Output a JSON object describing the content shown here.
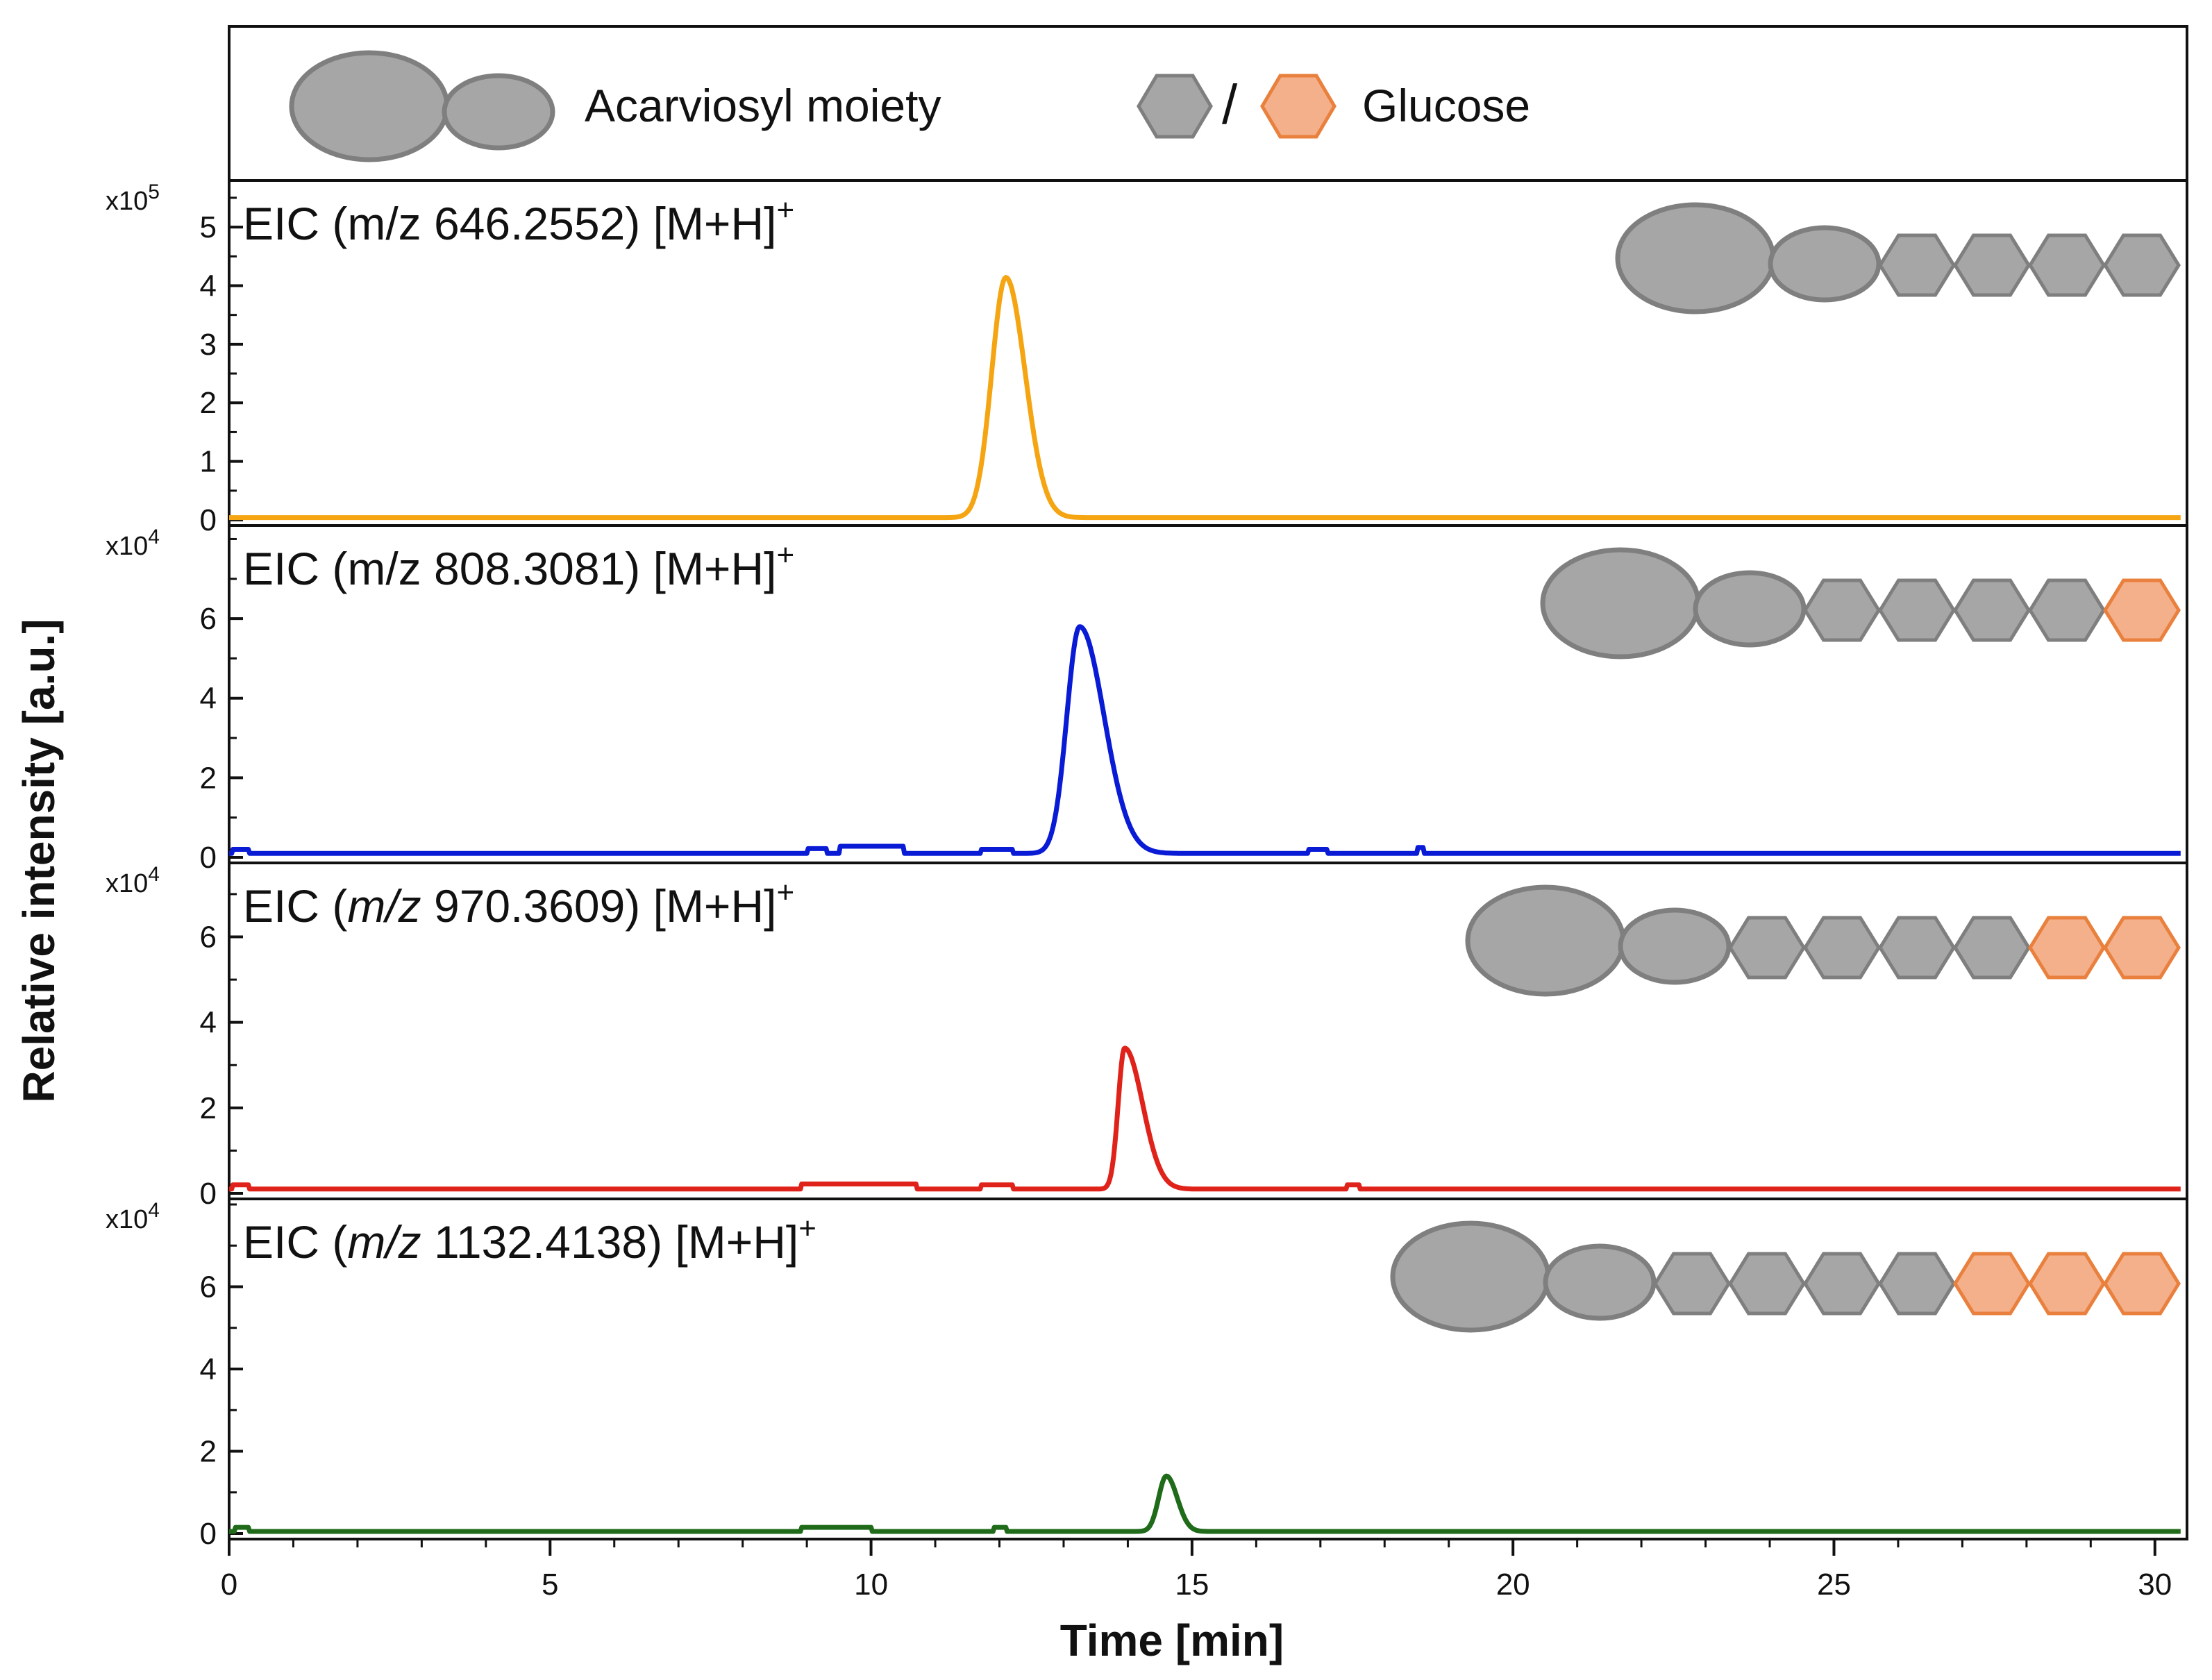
{
  "colors": {
    "grey_fill": "#a6a6a6",
    "grey_stroke": "#7f7f7f",
    "orange_fill": "#f3b08b",
    "orange_stroke": "#e9803d",
    "trace_1": "#f5a412",
    "trace_2": "#0a1bd6",
    "trace_3": "#e0231a",
    "trace_4": "#1f6b1a"
  },
  "legend": {
    "acarviosyl_label": "Acarviosyl moiety",
    "separator": "/",
    "glucose_label": "Glucose"
  },
  "axes": {
    "ylabel": "Relative intensity [a.u.]",
    "xlabel": "Time [min]"
  },
  "chart_data": {
    "type": "line",
    "x_axis": {
      "label": "Time [min]",
      "range": [
        0,
        30.5
      ],
      "major_ticks": [
        0,
        5,
        10,
        15,
        20,
        25,
        30
      ],
      "tick_labels": [
        "0",
        "5",
        "10",
        "15",
        "20",
        "25",
        "30"
      ],
      "minor_step": 1
    },
    "shared_ylabel": "Relative intensity [a.u.]",
    "panels": [
      {
        "title_prefix": "EIC (",
        "mz_prefix": "m/z",
        "mz_italic": false,
        "title_suffix": " 646.2552) [M+H]",
        "superscript": "+",
        "multiplier_base": "x10",
        "multiplier_exp": "5",
        "ylim": [
          0,
          5.7
        ],
        "yticks": [
          0,
          1,
          2,
          3,
          4,
          5
        ],
        "ytick_labels": [
          "0",
          "1",
          "2",
          "3",
          "4",
          "5"
        ],
        "y_minor_step": 0.5,
        "color_key": "trace_1",
        "baseline_y": 0.04,
        "structure": [
          "grey",
          "grey"
        ],
        "peaks": [
          {
            "center": 12.1,
            "height": 4.1,
            "sigma_left": 0.22,
            "sigma_right": 0.3
          }
        ],
        "plateaus": []
      },
      {
        "title_prefix": "EIC (",
        "mz_prefix": "m/z",
        "mz_italic": false,
        "title_suffix": " 808.3081) [M+H]",
        "superscript": "+",
        "multiplier_base": "x10",
        "multiplier_exp": "4",
        "ylim": [
          0,
          8.2
        ],
        "yticks": [
          0,
          2,
          4,
          6
        ],
        "ytick_labels": [
          "0",
          "2",
          "4",
          "6"
        ],
        "y_minor_step": 1,
        "color_key": "trace_2",
        "baseline_y": 0.1,
        "structure": [
          "grey",
          "grey",
          "orange"
        ],
        "peaks": [
          {
            "center": 13.25,
            "height": 5.7,
            "sigma_left": 0.2,
            "sigma_right": 0.38
          }
        ],
        "plateaus": [
          {
            "start": 0.05,
            "end": 0.3,
            "value": 0.2
          },
          {
            "start": 9.0,
            "end": 9.3,
            "value": 0.22
          },
          {
            "start": 9.5,
            "end": 10.5,
            "value": 0.28
          },
          {
            "start": 11.7,
            "end": 12.2,
            "value": 0.2
          },
          {
            "start": 16.8,
            "end": 17.1,
            "value": 0.2
          },
          {
            "start": 18.5,
            "end": 18.6,
            "value": 0.25
          }
        ]
      },
      {
        "title_prefix": "EIC (",
        "mz_prefix": "m/z",
        "mz_italic": true,
        "title_suffix": " 970.3609) [M+H]",
        "superscript": "+",
        "multiplier_base": "x10",
        "multiplier_exp": "4",
        "ylim": [
          0,
          7.6
        ],
        "yticks": [
          0,
          2,
          4,
          6
        ],
        "ytick_labels": [
          "0",
          "2",
          "4",
          "6"
        ],
        "y_minor_step": 1,
        "color_key": "trace_3",
        "baseline_y": 0.1,
        "structure": [
          "grey",
          "grey",
          "orange",
          "orange"
        ],
        "peaks": [
          {
            "center": 13.95,
            "height": 3.3,
            "sigma_left": 0.1,
            "sigma_right": 0.28
          }
        ],
        "plateaus": [
          {
            "start": 0.05,
            "end": 0.3,
            "value": 0.2
          },
          {
            "start": 8.9,
            "end": 10.7,
            "value": 0.22
          },
          {
            "start": 11.7,
            "end": 12.2,
            "value": 0.2
          },
          {
            "start": 17.4,
            "end": 17.6,
            "value": 0.2
          }
        ]
      },
      {
        "title_prefix": "EIC (",
        "mz_prefix": "m/z",
        "mz_italic": true,
        "title_suffix": " 1132.4138) [M+H]",
        "superscript": "+",
        "multiplier_base": "x10",
        "multiplier_exp": "4",
        "ylim": [
          0,
          8.0
        ],
        "yticks": [
          0,
          2,
          4,
          6
        ],
        "ytick_labels": [
          "0",
          "2",
          "4",
          "6"
        ],
        "y_minor_step": 1,
        "color_key": "trace_4",
        "baseline_y": 0.05,
        "structure": [
          "grey",
          "grey",
          "orange",
          "orange",
          "orange"
        ],
        "peaks": [
          {
            "center": 14.6,
            "height": 1.35,
            "sigma_left": 0.12,
            "sigma_right": 0.17
          }
        ],
        "plateaus": [
          {
            "start": 0.1,
            "end": 0.3,
            "value": 0.15
          },
          {
            "start": 8.9,
            "end": 10.0,
            "value": 0.15
          },
          {
            "start": 11.9,
            "end": 12.1,
            "value": 0.15
          }
        ]
      }
    ]
  }
}
